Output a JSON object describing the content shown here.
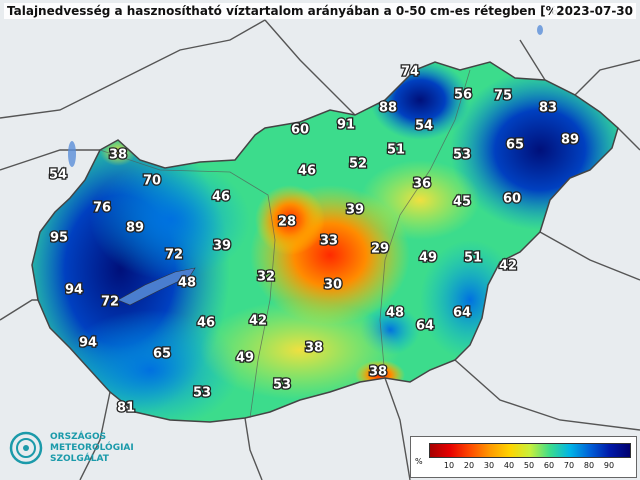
{
  "title": "Talajnedvesség a hasznosítható víztartalom arányában a 0-50 cm-es rétegben [%]",
  "date": "2023-07-30",
  "logo": {
    "line1": "ORSZÁGOS",
    "line2": "METEOROLÓGIAI",
    "line3": "SZOLGÁLAT"
  },
  "legend": {
    "unit": "%",
    "ticks": [
      "10",
      "20",
      "30",
      "40",
      "50",
      "60",
      "70",
      "80",
      "90"
    ],
    "colors": [
      "#a50000",
      "#e60000",
      "#ff4a00",
      "#ff9a00",
      "#ffd400",
      "#c8f03c",
      "#3cdc8c",
      "#00b4e6",
      "#0060d8",
      "#0018a8",
      "#00006e"
    ]
  },
  "values": [
    "74",
    "56",
    "75",
    "83",
    "89",
    "88",
    "91",
    "54",
    "65",
    "60",
    "51",
    "53",
    "46",
    "52",
    "36",
    "38",
    "70",
    "54",
    "45",
    "60",
    "76",
    "46",
    "28",
    "39",
    "95",
    "89",
    "33",
    "29",
    "72",
    "39",
    "49",
    "51",
    "42",
    "32",
    "48",
    "30",
    "94",
    "72",
    "46",
    "42",
    "48",
    "64",
    "64",
    "94",
    "65",
    "38",
    "49",
    "38",
    "53",
    "81",
    "53"
  ]
}
